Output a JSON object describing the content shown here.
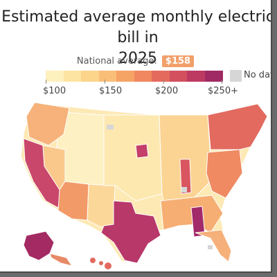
{
  "title_line1": "Estimated average monthly electric bill in",
  "title_line2": "2025",
  "national_average": {
    "label": "National average:",
    "value": "$158"
  },
  "legend": {
    "colors": [
      "#fdf1bd",
      "#fde4a2",
      "#fcd48a",
      "#f9be78",
      "#f6a366",
      "#f08760",
      "#e46a5e",
      "#d3505e",
      "#bd3a63",
      "#a02a63"
    ],
    "ticks": [
      "$100",
      "$150",
      "$200",
      "$250+"
    ],
    "no_data_label": "No data",
    "no_data_color": "#d6d6d6"
  },
  "map": {
    "regions": [
      {
        "name": "California",
        "color": "#c8476a"
      },
      {
        "name": "Texas",
        "color": "#b8386a"
      },
      {
        "name": "Alabama",
        "color": "#a22a6a"
      },
      {
        "name": "Alaska",
        "color": "#a42a63"
      },
      {
        "name": "Arizona",
        "color": "#f29a68"
      },
      {
        "name": "Florida",
        "color": "#f6b07a"
      },
      {
        "name": "Northeast",
        "color": "#e26a5f"
      },
      {
        "name": "Great Plains",
        "color": "#fde8b0"
      },
      {
        "name": "Mountain West",
        "color": "#fdf0c2"
      }
    ]
  }
}
